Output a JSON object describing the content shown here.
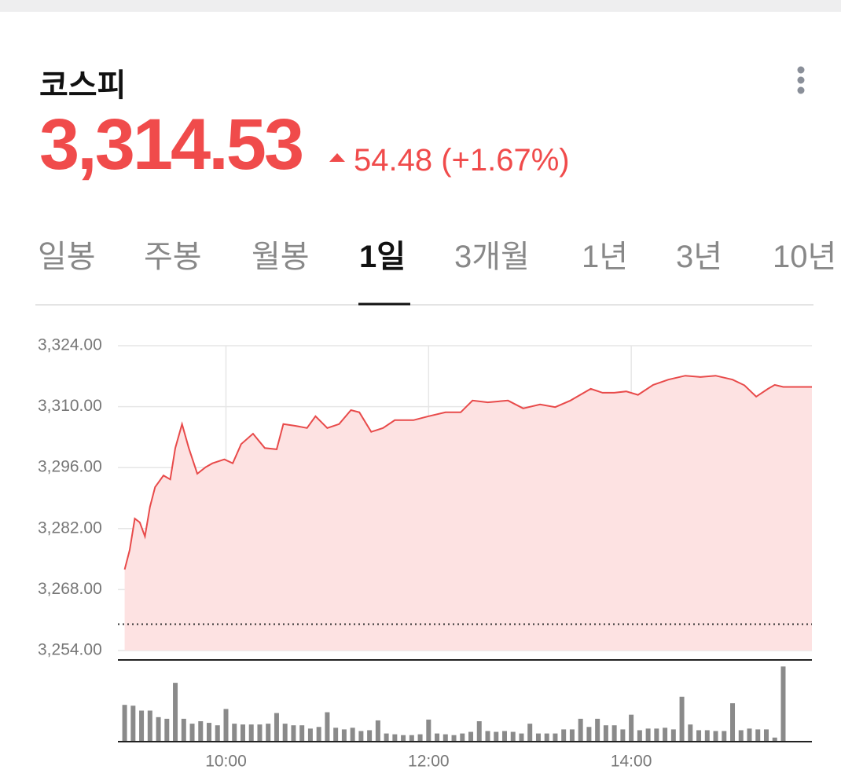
{
  "header": {
    "title": "코스피",
    "price": "3,314.53",
    "change": "54.48 (+1.67%)"
  },
  "tabs": {
    "items": [
      "일봉",
      "주봉",
      "월봉",
      "1일",
      "3개월",
      "1년",
      "3년",
      "10년"
    ],
    "selected": 3
  },
  "chart_data": {
    "type": "line",
    "x": [
      540,
      543,
      546,
      549,
      552,
      555,
      558,
      563,
      567,
      570,
      574,
      578,
      583,
      588,
      592,
      599,
      604,
      609,
      616,
      623,
      630,
      634,
      641,
      648,
      653,
      660,
      667,
      674,
      679,
      686,
      693,
      700,
      711,
      720,
      730,
      739,
      746,
      755,
      767,
      776,
      786,
      795,
      804,
      816,
      823,
      830,
      837,
      844,
      853,
      862,
      872,
      881,
      890,
      900,
      907,
      914,
      921,
      925,
      930,
      947
    ],
    "series": [
      {
        "color": "#e84a4a",
        "values": [
          3272.6,
          3277.1,
          3284.3,
          3283.4,
          3280.2,
          3287.0,
          3291.5,
          3294.2,
          3293.3,
          3300.5,
          3306.0,
          3300.5,
          3294.6,
          3296.1,
          3297.0,
          3297.9,
          3297.0,
          3301.4,
          3303.8,
          3300.5,
          3300.2,
          3306.0,
          3305.6,
          3305.1,
          3307.8,
          3305.1,
          3306.0,
          3309.2,
          3308.7,
          3304.2,
          3305.1,
          3306.9,
          3306.9,
          3307.8,
          3308.7,
          3308.7,
          3311.4,
          3311.0,
          3311.4,
          3309.6,
          3310.5,
          3309.9,
          3311.4,
          3314.1,
          3313.2,
          3313.2,
          3313.5,
          3312.7,
          3315.0,
          3316.2,
          3317.1,
          3316.8,
          3317.1,
          3316.2,
          3314.9,
          3312.3,
          3314.1,
          3315.0,
          3314.53,
          3314.53
        ]
      }
    ],
    "fill_color": "#fde2e2",
    "prev_close": 3260.05,
    "xlim": [
      536,
      947
    ],
    "ylim": [
      3254,
      3324
    ],
    "yticks": [
      {
        "value": 3324,
        "label": "3,324.00"
      },
      {
        "value": 3310,
        "label": "3,310.00"
      },
      {
        "value": 3296,
        "label": "3,296.00"
      },
      {
        "value": 3282,
        "label": "3,282.00"
      },
      {
        "value": 3268,
        "label": "3,268.00"
      },
      {
        "value": 3254,
        "label": "3,254.00"
      }
    ],
    "xticks": [
      {
        "value": 600,
        "label": "10:00"
      },
      {
        "value": 720,
        "label": "12:00"
      },
      {
        "value": 840,
        "label": "14:00"
      }
    ],
    "grid": true,
    "volume": {
      "color": "#8a8a8a",
      "ylim": [
        0,
        100
      ],
      "x": [
        540,
        545,
        550,
        555,
        560,
        565,
        570,
        575,
        580,
        585,
        590,
        595,
        600,
        605,
        610,
        615,
        620,
        625,
        630,
        635,
        640,
        645,
        650,
        655,
        660,
        665,
        670,
        675,
        680,
        685,
        690,
        695,
        700,
        705,
        710,
        715,
        720,
        725,
        730,
        735,
        740,
        745,
        750,
        755,
        760,
        765,
        770,
        775,
        780,
        785,
        790,
        795,
        800,
        805,
        810,
        815,
        820,
        825,
        830,
        835,
        840,
        845,
        850,
        855,
        860,
        865,
        870,
        875,
        880,
        885,
        890,
        895,
        900,
        905,
        910,
        915,
        920,
        925,
        930
      ],
      "values": [
        45,
        44,
        38,
        38,
        30,
        28,
        72,
        28,
        22,
        25,
        23,
        20,
        40,
        22,
        21,
        21,
        21,
        22,
        35,
        22,
        20,
        20,
        16,
        18,
        36,
        17,
        15,
        17,
        13,
        14,
        26,
        10,
        9,
        8,
        8,
        9,
        27,
        10,
        9,
        8,
        10,
        12,
        25,
        13,
        12,
        13,
        12,
        10,
        22,
        10,
        10,
        10,
        15,
        15,
        28,
        18,
        28,
        20,
        20,
        15,
        33,
        14,
        16,
        16,
        17,
        15,
        55,
        21,
        14,
        14,
        13,
        13,
        47,
        14,
        16,
        15,
        15,
        5,
        92
      ]
    }
  }
}
